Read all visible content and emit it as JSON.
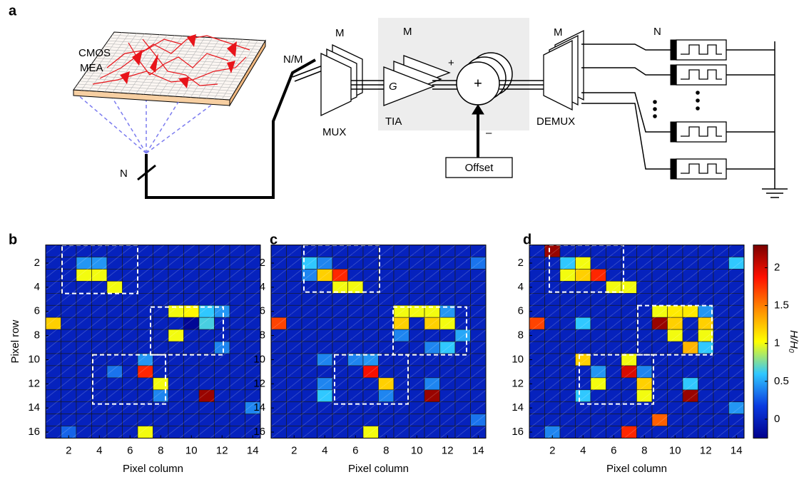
{
  "schematic": {
    "panel_label": "a",
    "mea_label_1": "CMOS",
    "mea_label_2": "MEA",
    "n_in": "N",
    "n_over_m": "N/M",
    "m_mux": "M",
    "mux": "MUX",
    "m_tia": "M",
    "tia": "TIA",
    "gain": "G",
    "plus_in": "+",
    "sum": "+",
    "minus_in": "–",
    "offset": "Offset",
    "m_demux": "M",
    "demux": "DEMUX",
    "n_out": "N"
  },
  "chart_data": [
    {
      "type": "heatmap",
      "panel_label": "b",
      "x_label": "Pixel column",
      "y_label": "Pixel row",
      "xlim": [
        0.5,
        14.5
      ],
      "ylim": [
        16.5,
        0.5
      ],
      "xticks": [
        2,
        4,
        6,
        8,
        10,
        12,
        14
      ],
      "yticks": [
        2,
        4,
        6,
        8,
        10,
        12,
        14,
        16
      ],
      "zlim": [
        -0.25,
        2.3
      ],
      "colormap": [
        "#00008c",
        "#0a3ae0",
        "#30c8ff",
        "#ffff00",
        "#ff8c00",
        "#ff1000",
        "#7a0000"
      ],
      "values": [
        [
          0,
          0,
          0,
          0,
          0,
          0,
          0,
          0,
          0,
          0,
          0,
          0,
          0,
          0
        ],
        [
          0,
          0,
          0.45,
          0.45,
          0,
          0,
          0,
          0,
          0,
          0,
          0,
          0,
          0,
          0
        ],
        [
          0,
          0,
          1.0,
          1.0,
          0,
          0,
          0,
          0,
          0,
          0,
          0,
          0,
          0,
          0
        ],
        [
          0,
          0,
          0,
          0,
          1.0,
          0,
          0,
          0,
          0,
          0,
          0,
          0,
          0,
          0
        ],
        [
          0,
          0,
          0,
          0,
          0,
          0,
          0,
          0,
          0,
          0,
          0,
          0,
          0,
          0
        ],
        [
          0,
          0,
          0,
          0,
          0,
          0,
          0,
          0,
          1.0,
          1.05,
          0.6,
          0.45,
          0,
          0
        ],
        [
          1.2,
          0,
          0,
          0,
          0,
          0,
          0,
          0,
          0,
          -0.2,
          0.65,
          0,
          0,
          0
        ],
        [
          0,
          0,
          0,
          0,
          0,
          0,
          0,
          0,
          1.0,
          0,
          0,
          0,
          0,
          0
        ],
        [
          0,
          0,
          0,
          0,
          0,
          0,
          0,
          0,
          0,
          0,
          0,
          0.4,
          0,
          0
        ],
        [
          0,
          0,
          0,
          0,
          0,
          0,
          0.45,
          0,
          0,
          0,
          0,
          0,
          0,
          0
        ],
        [
          0,
          0,
          0,
          0,
          0.35,
          0,
          1.8,
          0,
          0,
          0,
          0,
          0,
          0,
          0
        ],
        [
          0,
          0,
          0,
          0,
          0,
          0,
          0,
          1.0,
          0,
          0,
          0,
          0,
          0,
          0
        ],
        [
          0,
          0,
          0,
          0,
          0,
          0,
          0,
          0.4,
          0,
          0,
          2.2,
          0,
          0,
          0
        ],
        [
          0,
          0,
          0,
          0,
          0,
          0,
          0,
          0,
          0,
          0,
          0,
          0,
          0,
          0.4
        ],
        [
          0,
          0,
          0,
          0,
          0,
          0,
          0,
          0,
          0,
          0,
          0,
          0,
          0,
          0
        ],
        [
          0,
          0.3,
          0,
          0,
          0,
          0,
          1.0,
          0,
          0,
          0,
          0,
          0,
          0,
          0
        ]
      ]
    },
    {
      "type": "heatmap",
      "panel_label": "c",
      "x_label": "Pixel column",
      "xlim": [
        0.5,
        14.5
      ],
      "ylim": [
        16.5,
        0.5
      ],
      "xticks": [
        2,
        4,
        6,
        8,
        10,
        12,
        14
      ],
      "yticks": [
        2,
        4,
        6,
        8,
        10,
        12,
        14,
        16
      ],
      "zlim": [
        -0.25,
        2.3
      ],
      "colormap": [
        "#00008c",
        "#0a3ae0",
        "#30c8ff",
        "#ffff00",
        "#ff8c00",
        "#ff1000",
        "#7a0000"
      ],
      "values": [
        [
          0,
          0,
          0,
          0,
          0,
          0,
          0,
          0,
          0,
          0,
          0,
          0,
          0,
          0
        ],
        [
          0,
          0,
          0.6,
          0.4,
          0,
          0,
          0,
          0,
          0,
          0,
          0,
          0,
          0,
          0.35
        ],
        [
          0,
          0,
          0.4,
          1.2,
          1.8,
          0,
          0,
          0,
          0,
          0,
          0,
          0,
          0,
          0
        ],
        [
          0,
          0,
          0,
          0,
          1.0,
          1.0,
          0,
          0,
          0,
          0,
          0,
          0,
          0,
          0
        ],
        [
          0,
          0,
          0,
          0,
          0,
          0,
          0,
          0,
          0,
          0,
          0,
          0,
          0,
          0
        ],
        [
          0,
          0,
          0,
          0,
          0,
          0,
          0,
          0,
          1.0,
          1.0,
          1.0,
          0.45,
          0,
          0
        ],
        [
          1.7,
          0,
          0,
          0,
          0,
          0,
          0,
          0,
          1.2,
          0,
          1.2,
          1.0,
          0,
          0
        ],
        [
          0,
          0,
          0,
          0,
          0,
          0,
          0,
          0,
          0.4,
          0,
          0,
          0,
          0.5,
          0
        ],
        [
          0,
          0,
          0,
          0,
          0,
          0,
          0,
          0,
          0,
          0,
          0.4,
          0.6,
          0,
          0
        ],
        [
          0,
          0,
          0,
          0.4,
          0,
          0.4,
          0.45,
          0,
          0,
          0,
          0,
          0,
          0,
          0
        ],
        [
          0,
          0,
          0,
          0,
          0,
          0,
          1.9,
          0,
          0,
          0,
          0,
          0,
          0,
          0
        ],
        [
          0,
          0,
          0,
          0.4,
          0,
          0,
          0,
          1.2,
          0,
          0,
          0.4,
          0,
          0,
          0
        ],
        [
          0,
          0,
          0,
          0.6,
          0,
          0,
          0,
          0.4,
          0,
          0,
          2.2,
          0,
          0,
          0
        ],
        [
          0,
          0,
          0,
          0,
          0,
          0,
          0,
          0,
          0,
          0,
          0,
          0,
          0,
          0
        ],
        [
          0,
          0,
          0,
          0,
          0,
          0,
          0,
          0,
          0,
          0,
          0,
          0,
          0,
          0.35
        ],
        [
          0,
          0,
          0,
          0,
          0,
          0,
          1.0,
          0,
          0,
          0,
          0,
          0,
          0,
          0
        ]
      ]
    },
    {
      "type": "heatmap",
      "panel_label": "d",
      "x_label": "Pixel column",
      "xlim": [
        0.5,
        14.5
      ],
      "ylim": [
        16.5,
        0.5
      ],
      "xticks": [
        2,
        4,
        6,
        8,
        10,
        12,
        14
      ],
      "yticks": [
        2,
        4,
        6,
        8,
        10,
        12,
        14,
        16
      ],
      "zlim": [
        -0.25,
        2.3
      ],
      "colormap": [
        "#00008c",
        "#0a3ae0",
        "#30c8ff",
        "#ffff00",
        "#ff8c00",
        "#ff1000",
        "#7a0000"
      ],
      "colorbar": {
        "label": "H/H₀",
        "ticks": [
          0,
          0.5,
          1,
          1.5,
          2
        ]
      },
      "values": [
        [
          0,
          2.2,
          0,
          0,
          0,
          0,
          0,
          0,
          0,
          0,
          0,
          0,
          0,
          0
        ],
        [
          0,
          0,
          0.6,
          1.0,
          0,
          0,
          0,
          0,
          0,
          0,
          0,
          0,
          0,
          0.6
        ],
        [
          0,
          0,
          1.0,
          1.2,
          1.8,
          0,
          0,
          0,
          0,
          0,
          0,
          0,
          0,
          0
        ],
        [
          0,
          0,
          0,
          0,
          0,
          1.0,
          1.0,
          0,
          0,
          0,
          0,
          0,
          0,
          0
        ],
        [
          0,
          0,
          0,
          0,
          0,
          0,
          0,
          0,
          0,
          0,
          0,
          0,
          0,
          0
        ],
        [
          0,
          0,
          0,
          0,
          0,
          0,
          0,
          0,
          1.0,
          1.1,
          1.1,
          0.45,
          0,
          0
        ],
        [
          1.7,
          0,
          0,
          0.6,
          0,
          0,
          0,
          0,
          2.2,
          1.2,
          0,
          1.2,
          0,
          0
        ],
        [
          0,
          0,
          0,
          0,
          0,
          0,
          0,
          0,
          0,
          1.0,
          0,
          1.0,
          0,
          0
        ],
        [
          0,
          0,
          0,
          0,
          0,
          0,
          0,
          0,
          0,
          0,
          1.3,
          0.6,
          0,
          0
        ],
        [
          0,
          0,
          0,
          1.2,
          0,
          0,
          1.0,
          0,
          0,
          0,
          0,
          0,
          0,
          0
        ],
        [
          0,
          0,
          0,
          0,
          0.45,
          0,
          2.0,
          0.4,
          0,
          0,
          0,
          0,
          0,
          0
        ],
        [
          0,
          0,
          0,
          0,
          1.0,
          0,
          0,
          1.2,
          0,
          0,
          0.6,
          0,
          0,
          0
        ],
        [
          0,
          0,
          0,
          0.6,
          0,
          0,
          0,
          1.0,
          0,
          0,
          2.2,
          0,
          0,
          0
        ],
        [
          0,
          0,
          0,
          0,
          0,
          0,
          0,
          0,
          0,
          0,
          0,
          0,
          0,
          0.45
        ],
        [
          0,
          0,
          0,
          0,
          0,
          0,
          0,
          0,
          1.6,
          0,
          0,
          0,
          0,
          0
        ],
        [
          0,
          0.4,
          0,
          0,
          0,
          0,
          1.8,
          0,
          0,
          0,
          0,
          0,
          0,
          0
        ]
      ]
    }
  ]
}
